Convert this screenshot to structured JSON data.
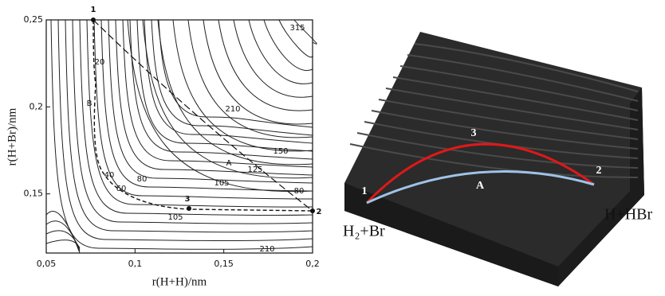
{
  "contour_plot": {
    "x_label": "r(H+H)/nm",
    "y_label": "r(H+Br)/nm",
    "xlim": [
      0.05,
      0.2
    ],
    "ylim": [
      0.116,
      0.25
    ],
    "xticks": [
      {
        "value": 0.05,
        "label": "0,05"
      },
      {
        "value": 0.1,
        "label": "0,1"
      },
      {
        "value": 0.15,
        "label": "0,15"
      },
      {
        "value": 0.2,
        "label": "0,2"
      }
    ],
    "yticks": [
      {
        "value": 0.25,
        "label": "0,25"
      },
      {
        "value": 0.2,
        "label": "0,2"
      },
      {
        "value": 0.15,
        "label": "0,15"
      }
    ],
    "labels": [
      "1",
      "315",
      "20",
      "B",
      "210",
      "150",
      "A",
      "125",
      "40",
      "80",
      "60",
      "105",
      "80",
      "3",
      "2",
      "105",
      "210"
    ]
  },
  "model": {
    "labels": [
      "1",
      "3",
      "2",
      "A"
    ],
    "reactants": "H₂+Br",
    "products": "H+HBr"
  }
}
